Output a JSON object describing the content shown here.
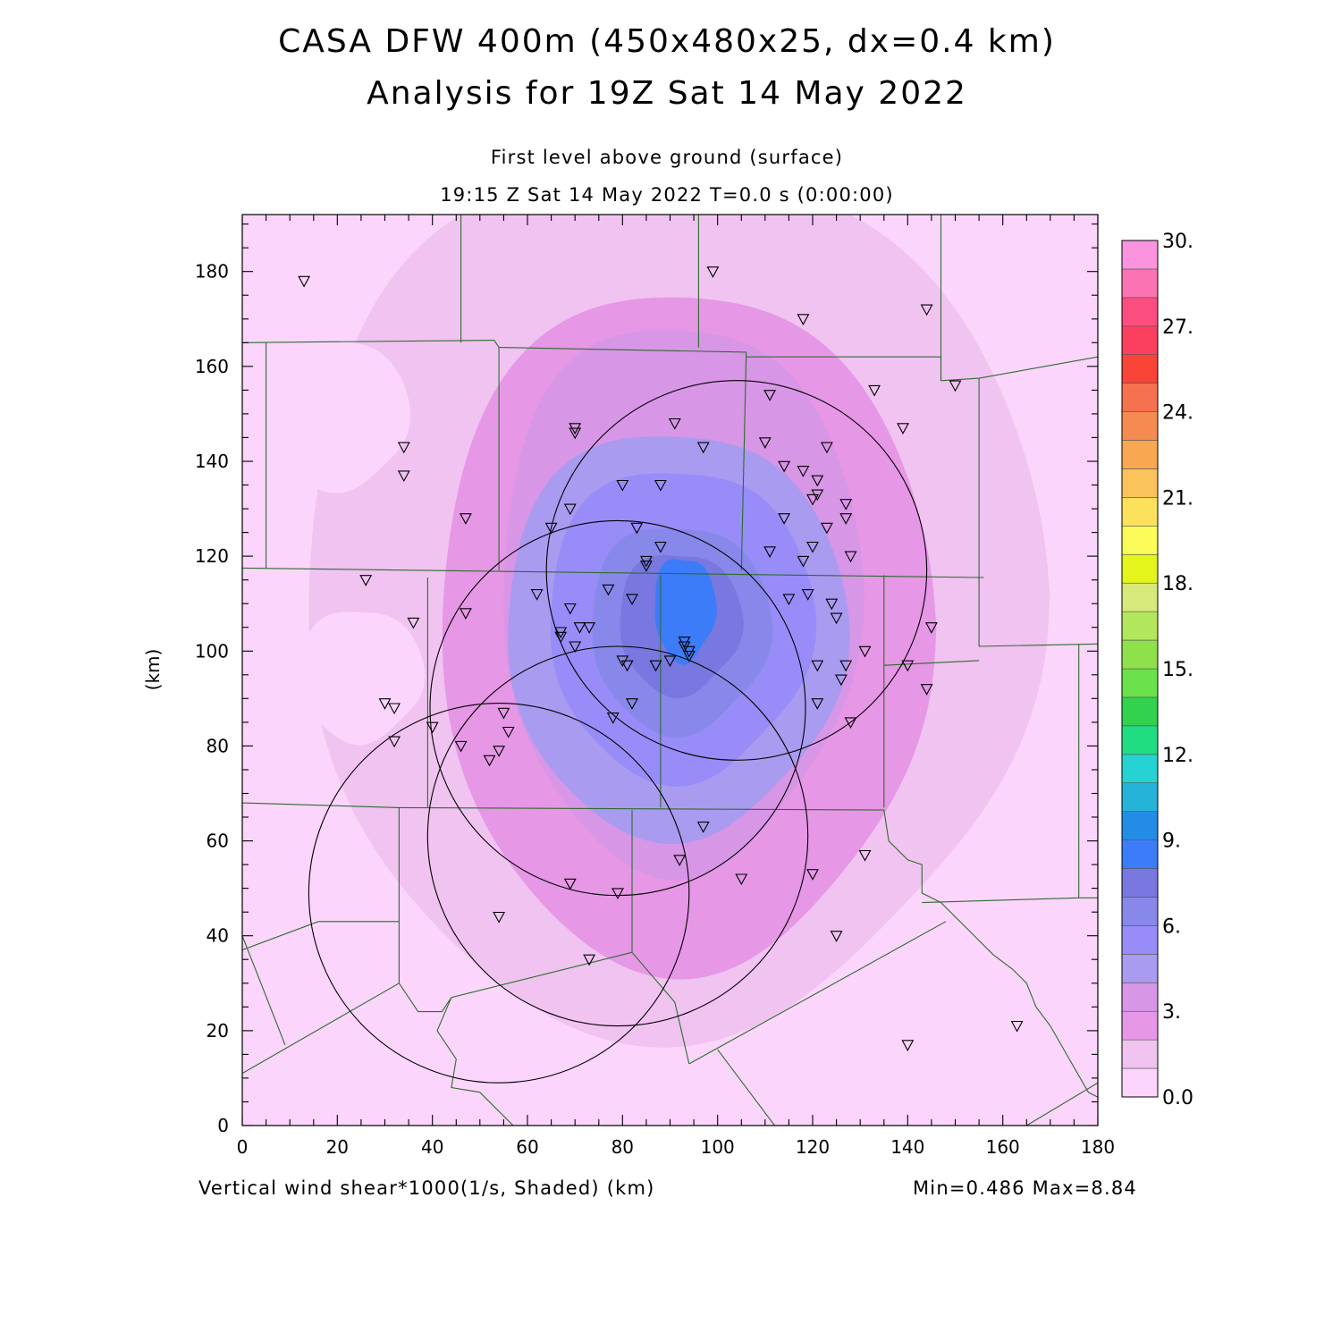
{
  "title_line1": "CASA DFW 400m (450x480x25, dx=0.4 km)",
  "title_line2": "Analysis for 19Z Sat 14 May 2022",
  "subtitle_level": "First level above ground (surface)",
  "subtitle_time": "19:15 Z Sat 14 May 2022   T=0.0 s (0:00:00)",
  "footer_field": "Vertical wind shear*1000(1/s, Shaded)  (km)",
  "footer_minmax": "Min=0.486 Max=8.84",
  "chart_data": {
    "type": "heatmap",
    "xlabel": "",
    "ylabel": "(km)",
    "xlim": [
      0,
      180
    ],
    "ylim": [
      0,
      192
    ],
    "x_ticks": [
      0,
      20,
      40,
      60,
      80,
      100,
      120,
      140,
      160,
      180
    ],
    "y_ticks": [
      0,
      20,
      40,
      60,
      80,
      100,
      120,
      140,
      160,
      180
    ],
    "field_min": 0.486,
    "field_max": 8.84,
    "field_peak_location_km": [
      93,
      107
    ],
    "colorbar": {
      "min": 0,
      "max": 30,
      "step": 1,
      "tick_labels": [
        "0.0",
        "3.",
        "6.",
        "9.",
        "12.",
        "15.",
        "18.",
        "21.",
        "24.",
        "27.",
        "30."
      ],
      "colors": [
        "#fbd5fb",
        "#f0c3f0",
        "#e697e6",
        "#d896e6",
        "#a99bf0",
        "#988cf8",
        "#8888ea",
        "#7878e0",
        "#3d7cf8",
        "#258ce6",
        "#26b3d9",
        "#26d3d3",
        "#21dd82",
        "#32d24f",
        "#6be14b",
        "#8fe14b",
        "#b2e65c",
        "#d7e97a",
        "#e4f51c",
        "#fbfb59",
        "#fbe15c",
        "#fbc35c",
        "#f8a851",
        "#f58b51",
        "#f57251",
        "#f84337",
        "#fb405f",
        "#fb4d80",
        "#fb73b3",
        "#fb93df"
      ]
    },
    "radars": [
      {
        "center_km": [
          104,
          117
        ],
        "radius_km": 40
      },
      {
        "center_km": [
          79,
          88
        ],
        "radius_km": 39.5
      },
      {
        "center_km": [
          79,
          61
        ],
        "radius_km": 40
      },
      {
        "center_km": [
          54,
          49
        ],
        "radius_km": 40
      }
    ],
    "stations_km": [
      [
        13,
        178
      ],
      [
        99,
        180
      ],
      [
        118,
        170
      ],
      [
        144,
        172
      ],
      [
        150,
        156
      ],
      [
        139,
        147
      ],
      [
        133,
        155
      ],
      [
        111,
        154
      ],
      [
        70,
        147
      ],
      [
        70,
        146
      ],
      [
        91,
        148
      ],
      [
        97,
        143
      ],
      [
        110,
        144
      ],
      [
        123,
        143
      ],
      [
        34,
        143
      ],
      [
        34,
        137
      ],
      [
        114,
        139
      ],
      [
        118,
        138
      ],
      [
        121,
        136
      ],
      [
        121,
        133
      ],
      [
        120,
        132
      ],
      [
        127,
        131
      ],
      [
        127,
        128
      ],
      [
        123,
        126
      ],
      [
        80,
        135
      ],
      [
        88,
        135
      ],
      [
        69,
        130
      ],
      [
        65,
        126
      ],
      [
        83,
        126
      ],
      [
        47,
        128
      ],
      [
        114,
        128
      ],
      [
        88,
        122
      ],
      [
        111,
        121
      ],
      [
        120,
        122
      ],
      [
        118,
        119
      ],
      [
        128,
        120
      ],
      [
        85,
        119
      ],
      [
        85,
        118
      ],
      [
        26,
        115
      ],
      [
        62,
        112
      ],
      [
        77,
        113
      ],
      [
        82,
        111
      ],
      [
        115,
        111
      ],
      [
        119,
        112
      ],
      [
        124,
        110
      ],
      [
        125,
        107
      ],
      [
        47,
        108
      ],
      [
        36,
        106
      ],
      [
        69,
        109
      ],
      [
        71,
        105
      ],
      [
        73,
        105
      ],
      [
        67,
        104
      ],
      [
        67,
        103
      ],
      [
        70,
        101
      ],
      [
        93,
        102
      ],
      [
        93,
        101
      ],
      [
        94,
        100
      ],
      [
        94,
        99
      ],
      [
        131,
        100
      ],
      [
        127,
        97
      ],
      [
        121,
        97
      ],
      [
        80,
        98
      ],
      [
        81,
        97
      ],
      [
        87,
        97
      ],
      [
        90,
        98
      ],
      [
        126,
        94
      ],
      [
        140,
        97
      ],
      [
        145,
        105
      ],
      [
        144,
        92
      ],
      [
        30,
        89
      ],
      [
        32,
        88
      ],
      [
        82,
        89
      ],
      [
        121,
        89
      ],
      [
        78,
        86
      ],
      [
        55,
        87
      ],
      [
        40,
        84
      ],
      [
        56,
        83
      ],
      [
        46,
        80
      ],
      [
        54,
        79
      ],
      [
        52,
        77
      ],
      [
        32,
        81
      ],
      [
        128,
        85
      ],
      [
        97,
        63
      ],
      [
        92,
        56
      ],
      [
        69,
        51
      ],
      [
        79,
        49
      ],
      [
        105,
        52
      ],
      [
        120,
        53
      ],
      [
        131,
        57
      ],
      [
        54,
        44
      ],
      [
        73,
        35
      ],
      [
        125,
        40
      ],
      [
        140,
        17
      ],
      [
        163,
        21
      ]
    ]
  }
}
